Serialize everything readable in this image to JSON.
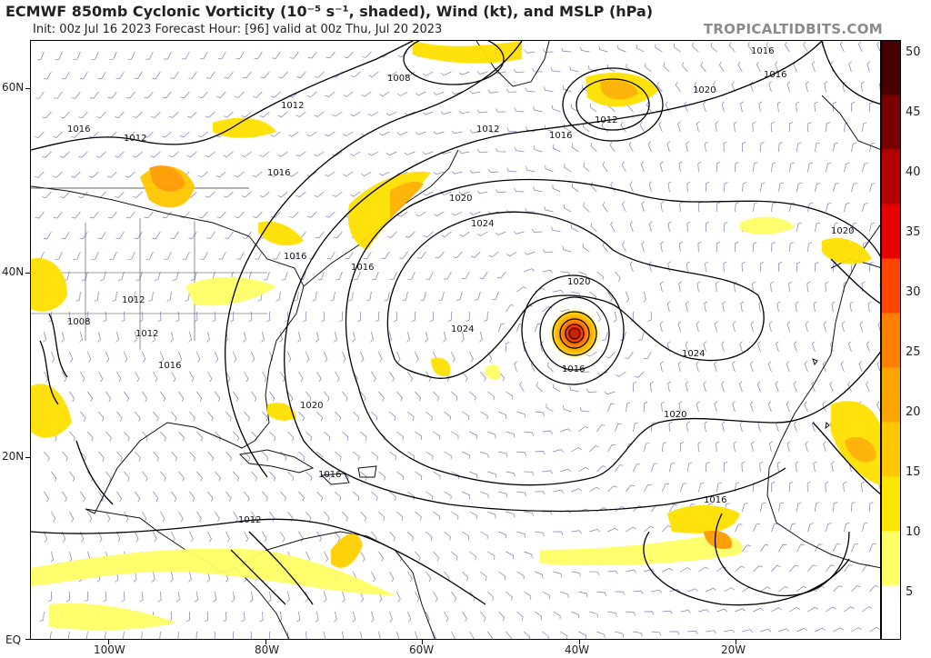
{
  "header": {
    "title": "ECMWF 850mb Cyclonic Vorticity (10⁻⁵ s⁻¹, shaded), Wind (kt), and MSLP (hPa)",
    "subtitle": "Init: 00z Jul 16 2023   Forecast Hour: [96]   valid at 00z Thu, Jul 20 2023",
    "watermark": "TROPICALTIDBITS.COM"
  },
  "axes": {
    "latitude_labels": [
      "EQ",
      "20N",
      "40N",
      "60N"
    ],
    "longitude_labels": [
      "100W",
      "80W",
      "60W",
      "40W",
      "20W"
    ]
  },
  "colorbar": {
    "ticks": [
      "5",
      "10",
      "15",
      "20",
      "25",
      "30",
      "35",
      "40",
      "45",
      "50"
    ],
    "colors": [
      "#ffffff",
      "#ffff66",
      "#ffe600",
      "#ffc800",
      "#ffa500",
      "#ff8000",
      "#ff4500",
      "#e60000",
      "#b40000",
      "#780000",
      "#460000"
    ]
  },
  "isobar_labels": [
    "1008",
    "1012",
    "1016",
    "1016",
    "1016",
    "1016",
    "1020",
    "1020",
    "1024",
    "1024",
    "1024",
    "1020",
    "1016",
    "1012",
    "1012",
    "1012",
    "1016",
    "1016",
    "1020",
    "1020",
    "1020",
    "1016",
    "1016",
    "1012",
    "1012",
    "1008",
    "1012",
    "1016",
    "1016"
  ],
  "features": {
    "vortex_center_color": "#cc2200",
    "vorticity_colors": [
      "#ffff66",
      "#ffe000",
      "#ffc000",
      "#ff9a00"
    ]
  }
}
